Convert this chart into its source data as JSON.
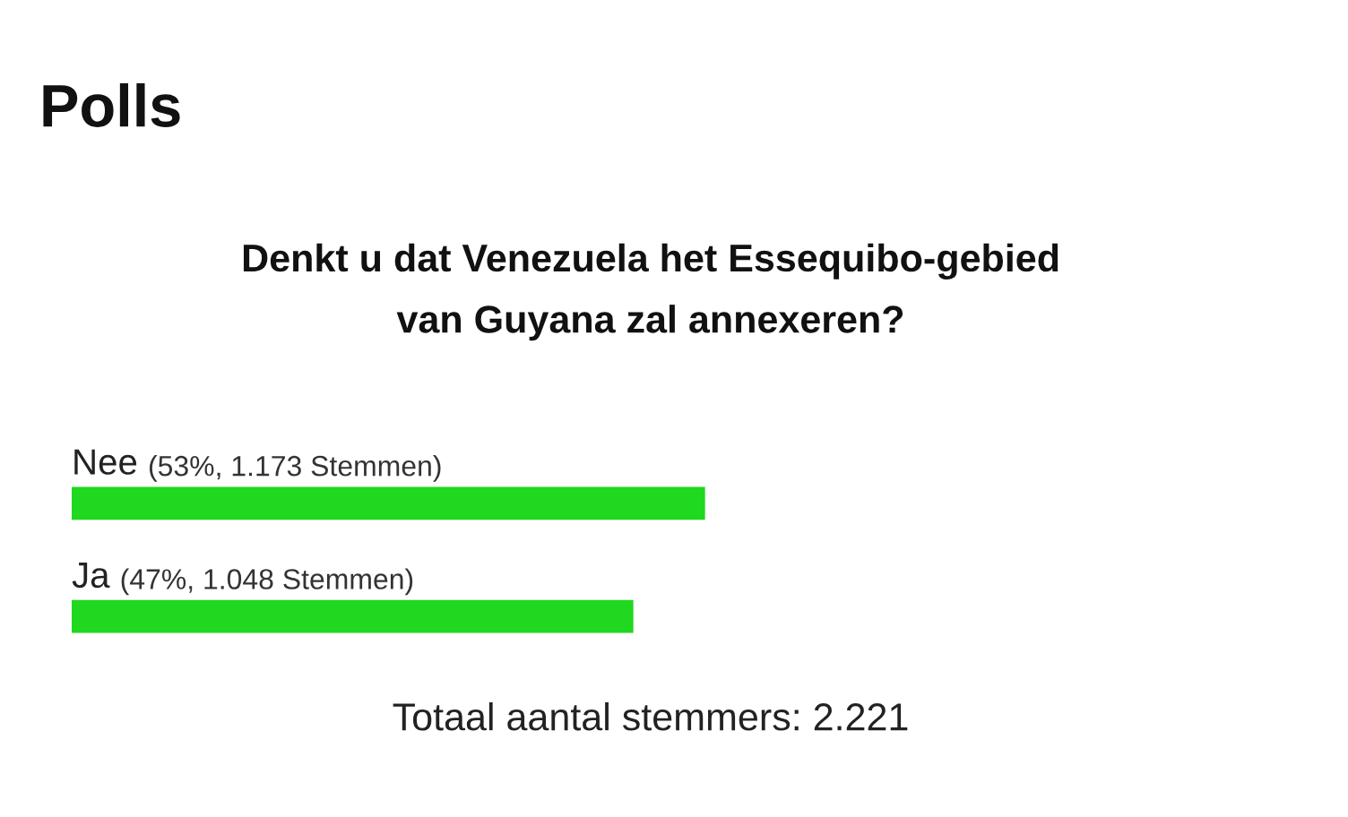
{
  "chart_data": {
    "type": "bar",
    "orientation": "horizontal",
    "title": "Polls",
    "subtitle": "Denkt u dat Venezuela het Essequibo-gebied\nvan Guyana zal annexeren?",
    "categories": [
      "Nee",
      "Ja"
    ],
    "values": [
      53,
      47
    ],
    "value_labels": [
      "(53%, 1.173 Stemmen)",
      "(47%, 1.048 Stemmen)"
    ],
    "color": "#1fd81f",
    "annotations": [
      "Totaal aantal stemmers: 2.221"
    ]
  }
}
